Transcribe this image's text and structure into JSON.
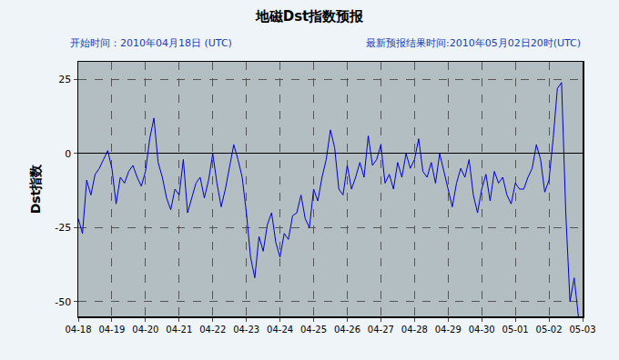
{
  "chart_data": {
    "type": "line",
    "title": "地磁Dst指数预报",
    "annotations": [
      "开始时间：2010年04月18日 (UTC)",
      "最新预报结果时间:2010年05月02日20时(UTC)"
    ],
    "y_label": "Dst指数",
    "categories": [
      "04-18",
      null,
      null,
      null,
      null,
      null,
      null,
      null,
      "04-19",
      null,
      null,
      null,
      null,
      null,
      null,
      null,
      "04-20",
      null,
      null,
      null,
      null,
      null,
      null,
      null,
      "04-21",
      null,
      null,
      null,
      null,
      null,
      null,
      null,
      "04-22",
      null,
      null,
      null,
      null,
      null,
      null,
      null,
      "04-23",
      null,
      null,
      null,
      null,
      null,
      null,
      null,
      "04-24",
      null,
      null,
      null,
      null,
      null,
      null,
      null,
      "04-25",
      null,
      null,
      null,
      null,
      null,
      null,
      null,
      "04-26",
      null,
      null,
      null,
      null,
      null,
      null,
      null,
      "04-27",
      null,
      null,
      null,
      null,
      null,
      null,
      null,
      "04-28",
      null,
      null,
      null,
      null,
      null,
      null,
      null,
      "04-29",
      null,
      null,
      null,
      null,
      null,
      null,
      null,
      "04-30",
      null,
      null,
      null,
      null,
      null,
      null,
      null,
      "05-01",
      null,
      null,
      null,
      null,
      null,
      null,
      null,
      "05-02",
      null,
      null,
      null,
      null,
      null,
      null,
      null,
      "05-03"
    ],
    "values": [
      -22,
      -27,
      -9,
      -14,
      -7,
      -5,
      -2,
      1,
      -5,
      -17,
      -8,
      -10,
      -6,
      -4,
      -8,
      -11,
      -6,
      5,
      12,
      -3,
      -8,
      -15,
      -19,
      -12,
      -14,
      -2,
      -20,
      -15,
      -10,
      -8,
      -15,
      -9,
      0,
      -10,
      -18,
      -12,
      -5,
      3,
      -2,
      -8,
      -20,
      -35,
      -42,
      -28,
      -33,
      -24,
      -20,
      -30,
      -35,
      -27,
      -29,
      -21,
      -20,
      -14,
      -22,
      -25,
      -12,
      -16,
      -8,
      -2,
      8,
      2,
      -12,
      -14,
      -4,
      -12,
      -8,
      -3,
      -8,
      6,
      -4,
      -2,
      3,
      -10,
      -7,
      -12,
      -3,
      -8,
      0,
      -5,
      -2,
      5,
      -6,
      -8,
      -3,
      -10,
      0,
      -6,
      -12,
      -18,
      -10,
      -5,
      -8,
      -2,
      -14,
      -20,
      -12,
      -7,
      -16,
      -6,
      -10,
      -8,
      -14,
      -17,
      -10,
      -12,
      -12,
      -8,
      -5,
      3,
      -2,
      -13,
      -9,
      5,
      22,
      24,
      -20,
      -50,
      -42,
      -55,
      null
    ],
    "color": "#0000cc",
    "ylim": [
      -55,
      31
    ],
    "yticks": [
      -50,
      -25,
      0,
      25
    ],
    "grid": true
  }
}
